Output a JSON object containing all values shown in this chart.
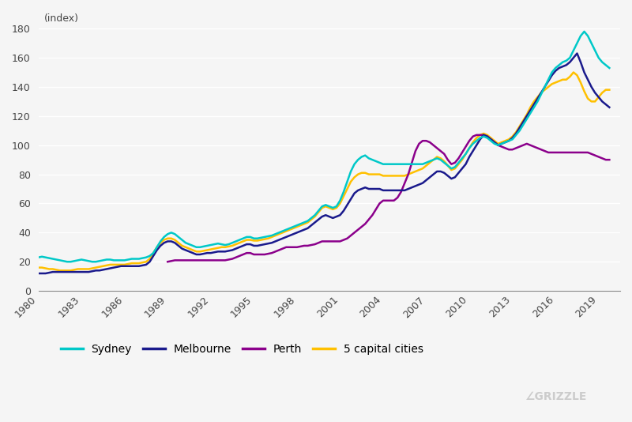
{
  "ylabel": "(index)",
  "ylim": [
    0,
    180
  ],
  "yticks": [
    0,
    20,
    40,
    60,
    80,
    100,
    120,
    140,
    160,
    180
  ],
  "xlim": [
    1980,
    2020.5
  ],
  "xticks": [
    1980,
    1983,
    1986,
    1989,
    1992,
    1995,
    1998,
    2001,
    2004,
    2007,
    2010,
    2013,
    2016,
    2019
  ],
  "bg_color": "#f5f5f5",
  "grid_color": "#ffffff",
  "colors": {
    "Sydney": "#00c8c8",
    "Melbourne": "#1a1a8c",
    "Perth": "#8b008b",
    "5 capital cities": "#ffc000"
  },
  "linewidth": 1.8,
  "series": {
    "Sydney": {
      "years": [
        1980,
        1980.25,
        1980.5,
        1980.75,
        1981,
        1981.25,
        1981.5,
        1981.75,
        1982,
        1982.25,
        1982.5,
        1982.75,
        1983,
        1983.25,
        1983.5,
        1983.75,
        1984,
        1984.25,
        1984.5,
        1984.75,
        1985,
        1985.25,
        1985.5,
        1985.75,
        1986,
        1986.25,
        1986.5,
        1986.75,
        1987,
        1987.25,
        1987.5,
        1987.75,
        1988,
        1988.25,
        1988.5,
        1988.75,
        1989,
        1989.25,
        1989.5,
        1989.75,
        1990,
        1990.25,
        1990.5,
        1990.75,
        1991,
        1991.25,
        1991.5,
        1991.75,
        1992,
        1992.25,
        1992.5,
        1992.75,
        1993,
        1993.25,
        1993.5,
        1993.75,
        1994,
        1994.25,
        1994.5,
        1994.75,
        1995,
        1995.25,
        1995.5,
        1995.75,
        1996,
        1996.25,
        1996.5,
        1996.75,
        1997,
        1997.25,
        1997.5,
        1997.75,
        1998,
        1998.25,
        1998.5,
        1998.75,
        1999,
        1999.25,
        1999.5,
        1999.75,
        2000,
        2000.25,
        2000.5,
        2000.75,
        2001,
        2001.25,
        2001.5,
        2001.75,
        2002,
        2002.25,
        2002.5,
        2002.75,
        2003,
        2003.25,
        2003.5,
        2003.75,
        2004,
        2004.25,
        2004.5,
        2004.75,
        2005,
        2005.25,
        2005.5,
        2005.75,
        2006,
        2006.25,
        2006.5,
        2006.75,
        2007,
        2007.25,
        2007.5,
        2007.75,
        2008,
        2008.25,
        2008.5,
        2008.75,
        2009,
        2009.25,
        2009.5,
        2009.75,
        2010,
        2010.25,
        2010.5,
        2010.75,
        2011,
        2011.25,
        2011.5,
        2011.75,
        2012,
        2012.25,
        2012.5,
        2012.75,
        2013,
        2013.25,
        2013.5,
        2013.75,
        2014,
        2014.25,
        2014.5,
        2014.75,
        2015,
        2015.25,
        2015.5,
        2015.75,
        2016,
        2016.25,
        2016.5,
        2016.75,
        2017,
        2017.25,
        2017.5,
        2017.75,
        2018,
        2018.25,
        2018.5,
        2018.75,
        2019,
        2019.25,
        2019.5,
        2019.75
      ],
      "values": [
        23,
        23.5,
        23,
        22.5,
        22,
        21.5,
        21,
        20.5,
        20,
        20,
        20.5,
        21,
        21.5,
        21,
        20.5,
        20,
        20,
        20.5,
        21,
        21.5,
        21.5,
        21,
        21,
        21,
        21,
        21.5,
        22,
        22,
        22,
        22.5,
        23,
        24,
        26,
        30,
        34,
        37,
        39,
        40,
        39,
        37,
        35,
        33,
        32,
        31,
        30,
        30,
        30.5,
        31,
        31.5,
        32,
        32.5,
        32,
        31.5,
        32,
        33,
        34,
        35,
        36,
        37,
        37,
        36,
        36,
        36.5,
        37,
        37.5,
        38,
        39,
        40,
        41,
        42,
        43,
        44,
        45,
        46,
        47,
        48,
        50,
        52,
        55,
        58,
        59,
        58,
        57,
        58,
        62,
        68,
        75,
        82,
        87,
        90,
        92,
        93,
        91,
        90,
        89,
        88,
        87,
        87,
        87,
        87,
        87,
        87,
        87,
        87,
        87,
        87,
        87,
        87,
        88,
        89,
        90,
        91,
        90,
        88,
        86,
        84,
        85,
        88,
        91,
        94,
        98,
        101,
        103,
        105,
        106,
        105,
        103,
        101,
        100,
        101,
        102,
        103,
        104,
        107,
        110,
        114,
        118,
        122,
        126,
        130,
        135,
        140,
        145,
        150,
        153,
        155,
        157,
        158,
        160,
        165,
        170,
        175,
        178,
        175,
        170,
        165,
        160,
        157,
        155,
        153
      ]
    },
    "Melbourne": {
      "years": [
        1980,
        1980.25,
        1980.5,
        1980.75,
        1981,
        1981.25,
        1981.5,
        1981.75,
        1982,
        1982.25,
        1982.5,
        1982.75,
        1983,
        1983.25,
        1983.5,
        1983.75,
        1984,
        1984.25,
        1984.5,
        1984.75,
        1985,
        1985.25,
        1985.5,
        1985.75,
        1986,
        1986.25,
        1986.5,
        1986.75,
        1987,
        1987.25,
        1987.5,
        1987.75,
        1988,
        1988.25,
        1988.5,
        1988.75,
        1989,
        1989.25,
        1989.5,
        1989.75,
        1990,
        1990.25,
        1990.5,
        1990.75,
        1991,
        1991.25,
        1991.5,
        1991.75,
        1992,
        1992.25,
        1992.5,
        1992.75,
        1993,
        1993.25,
        1993.5,
        1993.75,
        1994,
        1994.25,
        1994.5,
        1994.75,
        1995,
        1995.25,
        1995.5,
        1995.75,
        1996,
        1996.25,
        1996.5,
        1996.75,
        1997,
        1997.25,
        1997.5,
        1997.75,
        1998,
        1998.25,
        1998.5,
        1998.75,
        1999,
        1999.25,
        1999.5,
        1999.75,
        2000,
        2000.25,
        2000.5,
        2000.75,
        2001,
        2001.25,
        2001.5,
        2001.75,
        2002,
        2002.25,
        2002.5,
        2002.75,
        2003,
        2003.25,
        2003.5,
        2003.75,
        2004,
        2004.25,
        2004.5,
        2004.75,
        2005,
        2005.25,
        2005.5,
        2005.75,
        2006,
        2006.25,
        2006.5,
        2006.75,
        2007,
        2007.25,
        2007.5,
        2007.75,
        2008,
        2008.25,
        2008.5,
        2008.75,
        2009,
        2009.25,
        2009.5,
        2009.75,
        2010,
        2010.25,
        2010.5,
        2010.75,
        2011,
        2011.25,
        2011.5,
        2011.75,
        2012,
        2012.25,
        2012.5,
        2012.75,
        2013,
        2013.25,
        2013.5,
        2013.75,
        2014,
        2014.25,
        2014.5,
        2014.75,
        2015,
        2015.25,
        2015.5,
        2015.75,
        2016,
        2016.25,
        2016.5,
        2016.75,
        2017,
        2017.25,
        2017.5,
        2017.75,
        2018,
        2018.25,
        2018.5,
        2018.75,
        2019,
        2019.25,
        2019.5,
        2019.75
      ],
      "values": [
        12,
        12,
        12,
        12.5,
        13,
        13,
        13,
        13,
        13,
        13,
        13,
        13,
        13,
        13,
        13,
        13.5,
        14,
        14,
        14.5,
        15,
        15.5,
        16,
        16.5,
        17,
        17,
        17,
        17,
        17,
        17,
        17.5,
        18,
        20,
        24,
        28,
        31,
        33,
        34,
        34,
        33,
        31,
        29,
        28,
        27,
        26,
        25,
        25,
        25.5,
        26,
        26,
        26.5,
        27,
        27,
        27,
        27.5,
        28,
        29,
        30,
        31,
        32,
        32,
        31,
        31,
        31.5,
        32,
        32.5,
        33,
        34,
        35,
        36,
        37,
        38,
        39,
        40,
        41,
        42,
        43,
        45,
        47,
        49,
        51,
        52,
        51,
        50,
        51,
        52,
        55,
        59,
        63,
        67,
        69,
        70,
        71,
        70,
        70,
        70,
        70,
        69,
        69,
        69,
        69,
        69,
        69,
        69,
        70,
        71,
        72,
        73,
        74,
        76,
        78,
        80,
        82,
        82,
        81,
        79,
        77,
        78,
        81,
        84,
        87,
        92,
        96,
        100,
        104,
        107,
        106,
        104,
        102,
        100,
        101,
        102,
        103,
        105,
        108,
        112,
        116,
        120,
        124,
        128,
        132,
        136,
        140,
        144,
        148,
        151,
        153,
        154,
        155,
        157,
        160,
        163,
        157,
        150,
        145,
        140,
        136,
        133,
        130,
        128,
        126
      ]
    },
    "Perth": {
      "years": [
        1989,
        1989.25,
        1989.5,
        1989.75,
        1990,
        1990.25,
        1990.5,
        1990.75,
        1991,
        1991.25,
        1991.5,
        1991.75,
        1992,
        1992.25,
        1992.5,
        1992.75,
        1993,
        1993.25,
        1993.5,
        1993.75,
        1994,
        1994.25,
        1994.5,
        1994.75,
        1995,
        1995.25,
        1995.5,
        1995.75,
        1996,
        1996.25,
        1996.5,
        1996.75,
        1997,
        1997.25,
        1997.5,
        1997.75,
        1998,
        1998.25,
        1998.5,
        1998.75,
        1999,
        1999.25,
        1999.5,
        1999.75,
        2000,
        2000.25,
        2000.5,
        2000.75,
        2001,
        2001.25,
        2001.5,
        2001.75,
        2002,
        2002.25,
        2002.5,
        2002.75,
        2003,
        2003.25,
        2003.5,
        2003.75,
        2004,
        2004.25,
        2004.5,
        2004.75,
        2005,
        2005.25,
        2005.5,
        2005.75,
        2006,
        2006.25,
        2006.5,
        2006.75,
        2007,
        2007.25,
        2007.5,
        2007.75,
        2008,
        2008.25,
        2008.5,
        2008.75,
        2009,
        2009.25,
        2009.5,
        2009.75,
        2010,
        2010.25,
        2010.5,
        2010.75,
        2011,
        2011.25,
        2011.5,
        2011.75,
        2012,
        2012.25,
        2012.5,
        2012.75,
        2013,
        2013.25,
        2013.5,
        2013.75,
        2014,
        2014.25,
        2014.5,
        2014.75,
        2015,
        2015.25,
        2015.5,
        2015.75,
        2016,
        2016.25,
        2016.5,
        2016.75,
        2017,
        2017.25,
        2017.5,
        2017.75,
        2018,
        2018.25,
        2018.5,
        2018.75,
        2019,
        2019.25,
        2019.5,
        2019.75
      ],
      "values": [
        20,
        20.5,
        21,
        21,
        21,
        21,
        21,
        21,
        21,
        21,
        21,
        21,
        21,
        21,
        21,
        21,
        21,
        21.5,
        22,
        23,
        24,
        25,
        26,
        26,
        25,
        25,
        25,
        25,
        25.5,
        26,
        27,
        28,
        29,
        30,
        30,
        30,
        30,
        30.5,
        31,
        31,
        31.5,
        32,
        33,
        34,
        34,
        34,
        34,
        34,
        34,
        35,
        36,
        38,
        40,
        42,
        44,
        46,
        49,
        52,
        56,
        60,
        62,
        62,
        62,
        62,
        64,
        68,
        74,
        80,
        88,
        96,
        101,
        103,
        103,
        102,
        100,
        98,
        96,
        94,
        90,
        87,
        88,
        91,
        95,
        99,
        103,
        106,
        107,
        107,
        107,
        106,
        104,
        102,
        100,
        99,
        98,
        97,
        97,
        98,
        99,
        100,
        101,
        100,
        99,
        98,
        97,
        96,
        95,
        95,
        95,
        95,
        95,
        95,
        95,
        95,
        95,
        95,
        95,
        95,
        94,
        93,
        92,
        91,
        90,
        90
      ]
    },
    "5 capital cities": {
      "years": [
        1980,
        1980.25,
        1980.5,
        1980.75,
        1981,
        1981.25,
        1981.5,
        1981.75,
        1982,
        1982.25,
        1982.5,
        1982.75,
        1983,
        1983.25,
        1983.5,
        1983.75,
        1984,
        1984.25,
        1984.5,
        1984.75,
        1985,
        1985.25,
        1985.5,
        1985.75,
        1986,
        1986.25,
        1986.5,
        1986.75,
        1987,
        1987.25,
        1987.5,
        1987.75,
        1988,
        1988.25,
        1988.5,
        1988.75,
        1989,
        1989.25,
        1989.5,
        1989.75,
        1990,
        1990.25,
        1990.5,
        1990.75,
        1991,
        1991.25,
        1991.5,
        1991.75,
        1992,
        1992.25,
        1992.5,
        1992.75,
        1993,
        1993.25,
        1993.5,
        1993.75,
        1994,
        1994.25,
        1994.5,
        1994.75,
        1995,
        1995.25,
        1995.5,
        1995.75,
        1996,
        1996.25,
        1996.5,
        1996.75,
        1997,
        1997.25,
        1997.5,
        1997.75,
        1998,
        1998.25,
        1998.5,
        1998.75,
        1999,
        1999.25,
        1999.5,
        1999.75,
        2000,
        2000.25,
        2000.5,
        2000.75,
        2001,
        2001.25,
        2001.5,
        2001.75,
        2002,
        2002.25,
        2002.5,
        2002.75,
        2003,
        2003.25,
        2003.5,
        2003.75,
        2004,
        2004.25,
        2004.5,
        2004.75,
        2005,
        2005.25,
        2005.5,
        2005.75,
        2006,
        2006.25,
        2006.5,
        2006.75,
        2007,
        2007.25,
        2007.5,
        2007.75,
        2008,
        2008.25,
        2008.5,
        2008.75,
        2009,
        2009.25,
        2009.5,
        2009.75,
        2010,
        2010.25,
        2010.5,
        2010.75,
        2011,
        2011.25,
        2011.5,
        2011.75,
        2012,
        2012.25,
        2012.5,
        2012.75,
        2013,
        2013.25,
        2013.5,
        2013.75,
        2014,
        2014.25,
        2014.5,
        2014.75,
        2015,
        2015.25,
        2015.5,
        2015.75,
        2016,
        2016.25,
        2016.5,
        2016.75,
        2017,
        2017.25,
        2017.5,
        2017.75,
        2018,
        2018.25,
        2018.5,
        2018.75,
        2019,
        2019.25,
        2019.5,
        2019.75
      ],
      "values": [
        16,
        16,
        15.5,
        15,
        15,
        14.5,
        14,
        14,
        14,
        14,
        14.5,
        15,
        15,
        15,
        15,
        15.5,
        16,
        16.5,
        17,
        17.5,
        18,
        18,
        18,
        18,
        18,
        18.5,
        19,
        19,
        19,
        19.5,
        20,
        22,
        26,
        30,
        33,
        35,
        36,
        36,
        35,
        33,
        31,
        30,
        29,
        28,
        27,
        27,
        27.5,
        28,
        28.5,
        29,
        29.5,
        30,
        30,
        30.5,
        31,
        32,
        33,
        34,
        35,
        35,
        34.5,
        34.5,
        35,
        35.5,
        36,
        37,
        38,
        39,
        40,
        41,
        42,
        43,
        44,
        45,
        46,
        47,
        49,
        51,
        54,
        57,
        58,
        57,
        56,
        57,
        60,
        65,
        70,
        75,
        78,
        80,
        81,
        81,
        80,
        80,
        80,
        80,
        79,
        79,
        79,
        79,
        79,
        79,
        79,
        80,
        81,
        82,
        83,
        84,
        86,
        88,
        90,
        92,
        91,
        89,
        86,
        83,
        84,
        87,
        90,
        94,
        98,
        102,
        105,
        107,
        108,
        107,
        105,
        103,
        101,
        102,
        103,
        104,
        106,
        109,
        113,
        117,
        121,
        126,
        130,
        133,
        136,
        138,
        140,
        142,
        143,
        144,
        145,
        145,
        147,
        150,
        148,
        143,
        137,
        132,
        130,
        130,
        133,
        136,
        138,
        138
      ]
    }
  }
}
